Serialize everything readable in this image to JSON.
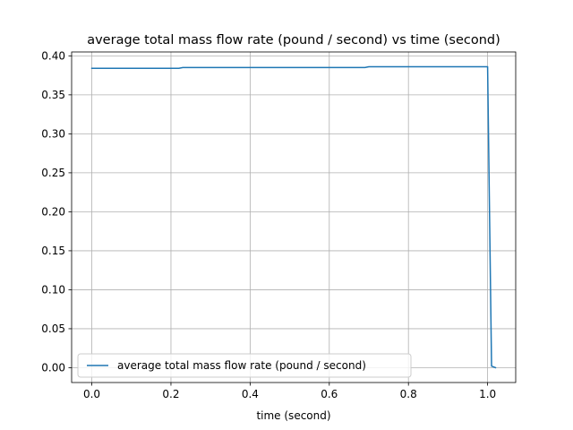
{
  "chart_data": {
    "type": "line",
    "title": "average total mass flow rate (pound / second) vs time (second)",
    "xlabel": "time (second)",
    "ylabel": "",
    "xlim": [
      -0.051,
      1.071
    ],
    "ylim": [
      -0.019,
      0.405
    ],
    "xticks": [
      0.0,
      0.2,
      0.4,
      0.6,
      0.8,
      1.0
    ],
    "xtick_labels": [
      "0.0",
      "0.2",
      "0.4",
      "0.6",
      "0.8",
      "1.0"
    ],
    "yticks": [
      0.0,
      0.05,
      0.1,
      0.15,
      0.2,
      0.25,
      0.3,
      0.35,
      0.4
    ],
    "ytick_labels": [
      "0.00",
      "0.05",
      "0.10",
      "0.15",
      "0.20",
      "0.25",
      "0.30",
      "0.35",
      "0.40"
    ],
    "grid": true,
    "legend_position": "lower-left",
    "series": [
      {
        "name": "average total mass flow rate (pound / second)",
        "color": "#1f77b4",
        "x": [
          0.0,
          0.22,
          0.23,
          0.69,
          0.7,
          1.0,
          1.01,
          1.02
        ],
        "y": [
          0.384,
          0.384,
          0.385,
          0.385,
          0.386,
          0.386,
          0.002,
          0.0
        ]
      }
    ]
  }
}
